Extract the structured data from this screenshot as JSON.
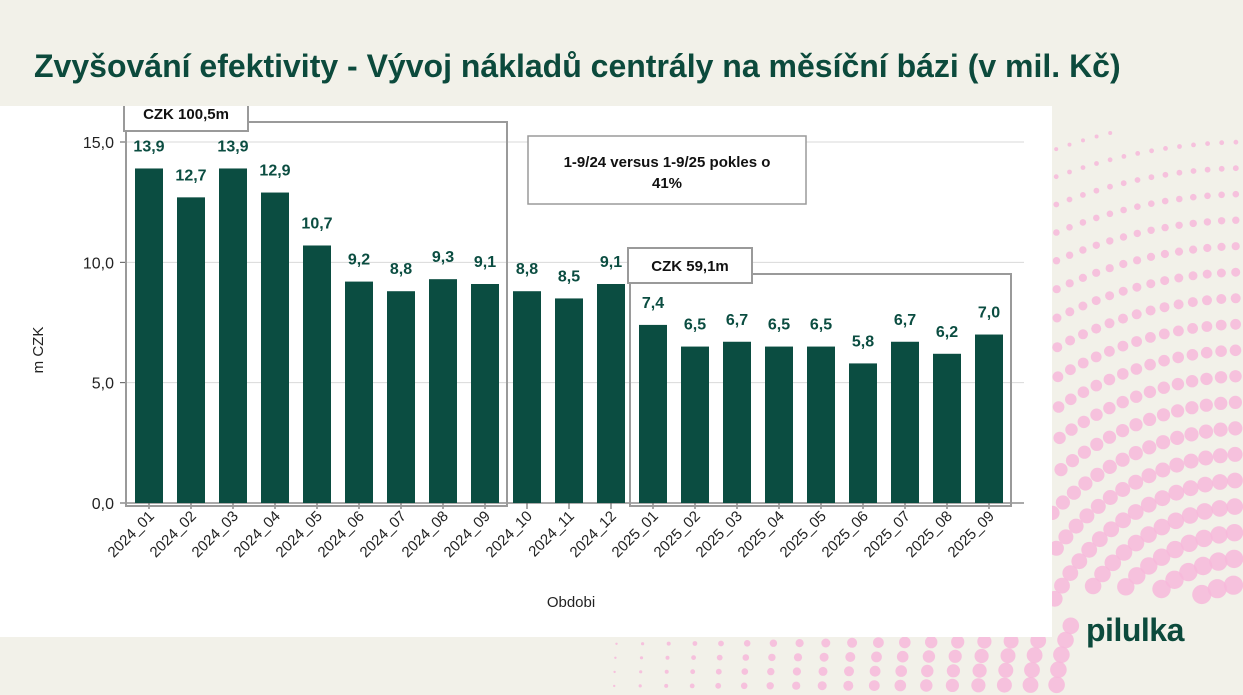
{
  "page": {
    "title": "Zvyšování efektivity - Vývoj nákladů centrály na měsíční bázi (v mil. Kč)",
    "logo_text": "pilulka"
  },
  "colors": {
    "bar": "#0b4d41",
    "label": "#0b4d41",
    "background": "#f2f1e9",
    "dots": "#f7b9da"
  },
  "chart_data": {
    "type": "bar",
    "xlabel": "Obdobi",
    "ylabel": "m CZK",
    "ylim": [
      0,
      15
    ],
    "yticks": [
      "0,0",
      "5,0",
      "10,0",
      "15,0"
    ],
    "grid": "horizontal",
    "categories": [
      "2024_01",
      "2024_02",
      "2024_03",
      "2024_04",
      "2024_05",
      "2024_06",
      "2024_07",
      "2024_08",
      "2024_09",
      "2024_10",
      "2024_11",
      "2024_12",
      "2025_01",
      "2025_02",
      "2025_03",
      "2025_04",
      "2025_05",
      "2025_06",
      "2025_07",
      "2025_08",
      "2025_09"
    ],
    "values": [
      13.9,
      12.7,
      13.9,
      12.9,
      10.7,
      9.2,
      8.8,
      9.3,
      9.1,
      8.8,
      8.5,
      9.1,
      7.4,
      6.5,
      6.7,
      6.5,
      6.5,
      5.8,
      6.7,
      6.2,
      7.0
    ],
    "value_labels": [
      "13,9",
      "12,7",
      "13,9",
      "12,9",
      "10,7",
      "9,2",
      "8,8",
      "9,3",
      "9,1",
      "8,8",
      "8,5",
      "9,1",
      "7,4",
      "6,5",
      "6,7",
      "6,5",
      "6,5",
      "5,8",
      "6,7",
      "6,2",
      "7,0"
    ],
    "annotations": {
      "group_2024": {
        "label": "CZK 100,5m",
        "from": 0,
        "to": 8
      },
      "group_2025": {
        "label": "CZK 59,1m",
        "from": 12,
        "to": 20
      },
      "comparison": {
        "line1": "1-9/24 versus 1-9/25 pokles o",
        "line2": "41%"
      }
    }
  }
}
